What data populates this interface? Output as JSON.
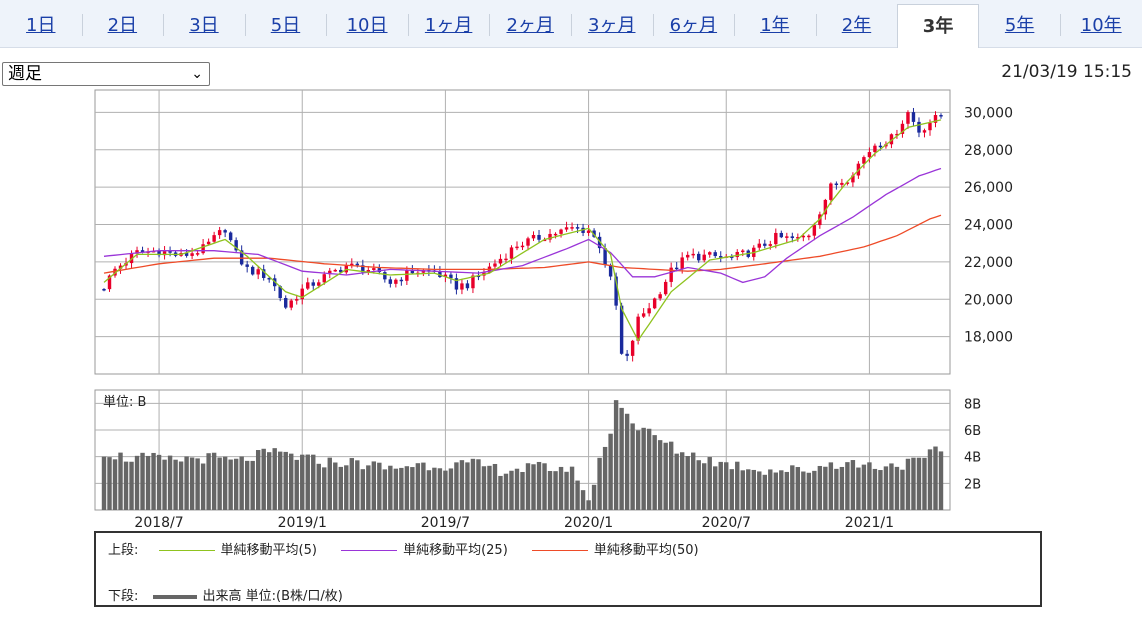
{
  "tabs": [
    {
      "label": "1日",
      "active": false
    },
    {
      "label": "2日",
      "active": false
    },
    {
      "label": "3日",
      "active": false
    },
    {
      "label": "5日",
      "active": false
    },
    {
      "label": "10日",
      "active": false
    },
    {
      "label": "1ヶ月",
      "active": false
    },
    {
      "label": "2ヶ月",
      "active": false
    },
    {
      "label": "3ヶ月",
      "active": false
    },
    {
      "label": "6ヶ月",
      "active": false
    },
    {
      "label": "1年",
      "active": false
    },
    {
      "label": "2年",
      "active": false
    },
    {
      "label": "3年",
      "active": true
    },
    {
      "label": "5年",
      "active": false
    },
    {
      "label": "10年",
      "active": false
    }
  ],
  "period_select": {
    "value": "週足"
  },
  "timestamp": "21/03/19 15:15",
  "colors": {
    "up": "#e8002a",
    "down": "#1a2a9c",
    "ma5": "#8fc31f",
    "ma25": "#9a35d8",
    "ma50": "#ee4b28",
    "volume": "#666666",
    "grid": "#b0b0b0"
  },
  "chart_data": [
    {
      "type": "candlestick",
      "y_ticks": [
        "30,000",
        "28,000",
        "26,000",
        "24,000",
        "22,000",
        "20,000",
        "18,000"
      ],
      "y_tick_values": [
        30000,
        28000,
        26000,
        24000,
        22000,
        20000,
        18000
      ],
      "ylim": [
        16000,
        31200
      ],
      "x_ticks": [
        "2018/7",
        "2019/1",
        "2019/7",
        "2020/1",
        "2020/7",
        "2021/1"
      ],
      "x_tick_index": [
        10,
        36,
        62,
        88,
        113,
        139
      ],
      "weeks": 153,
      "close_anchors": [
        [
          0,
          20700
        ],
        [
          2,
          21600
        ],
        [
          6,
          22500
        ],
        [
          10,
          22600
        ],
        [
          14,
          22300
        ],
        [
          18,
          22700
        ],
        [
          22,
          23800
        ],
        [
          24,
          22400
        ],
        [
          26,
          21600
        ],
        [
          30,
          21200
        ],
        [
          33,
          19600
        ],
        [
          36,
          20500
        ],
        [
          40,
          21200
        ],
        [
          44,
          21800
        ],
        [
          48,
          21600
        ],
        [
          52,
          20900
        ],
        [
          56,
          21500
        ],
        [
          60,
          21500
        ],
        [
          64,
          20700
        ],
        [
          66,
          20800
        ],
        [
          70,
          21700
        ],
        [
          75,
          22900
        ],
        [
          80,
          23400
        ],
        [
          85,
          23800
        ],
        [
          88,
          23700
        ],
        [
          90,
          22900
        ],
        [
          92,
          21000
        ],
        [
          93,
          19600
        ],
        [
          94,
          17000
        ],
        [
          95,
          16800
        ],
        [
          97,
          18900
        ],
        [
          100,
          20000
        ],
        [
          103,
          21500
        ],
        [
          106,
          22300
        ],
        [
          110,
          22300
        ],
        [
          114,
          22200
        ],
        [
          118,
          22600
        ],
        [
          122,
          23300
        ],
        [
          126,
          23200
        ],
        [
          128,
          23500
        ],
        [
          132,
          26000
        ],
        [
          135,
          26500
        ],
        [
          138,
          27600
        ],
        [
          140,
          28300
        ],
        [
          143,
          28600
        ],
        [
          146,
          30000
        ],
        [
          148,
          29000
        ],
        [
          150,
          29500
        ],
        [
          152,
          29800
        ]
      ],
      "ma5_anchors": [
        [
          0,
          20900
        ],
        [
          6,
          22400
        ],
        [
          14,
          22400
        ],
        [
          22,
          23200
        ],
        [
          26,
          22300
        ],
        [
          33,
          20400
        ],
        [
          36,
          20100
        ],
        [
          44,
          21600
        ],
        [
          52,
          21300
        ],
        [
          60,
          21400
        ],
        [
          64,
          21000
        ],
        [
          70,
          21400
        ],
        [
          80,
          23200
        ],
        [
          88,
          23800
        ],
        [
          92,
          22400
        ],
        [
          94,
          19500
        ],
        [
          97,
          17800
        ],
        [
          103,
          20400
        ],
        [
          110,
          22100
        ],
        [
          118,
          22500
        ],
        [
          126,
          23200
        ],
        [
          130,
          24300
        ],
        [
          132,
          25200
        ],
        [
          135,
          26300
        ],
        [
          140,
          27800
        ],
        [
          146,
          29200
        ],
        [
          152,
          29600
        ]
      ],
      "ma25_anchors": [
        [
          0,
          22300
        ],
        [
          10,
          22600
        ],
        [
          20,
          22600
        ],
        [
          28,
          22400
        ],
        [
          36,
          21500
        ],
        [
          44,
          21300
        ],
        [
          52,
          21600
        ],
        [
          60,
          21500
        ],
        [
          68,
          21400
        ],
        [
          76,
          21800
        ],
        [
          84,
          22700
        ],
        [
          88,
          23200
        ],
        [
          92,
          22500
        ],
        [
          96,
          21200
        ],
        [
          100,
          21200
        ],
        [
          106,
          21700
        ],
        [
          112,
          21400
        ],
        [
          116,
          20900
        ],
        [
          120,
          21200
        ],
        [
          124,
          22200
        ],
        [
          130,
          23400
        ],
        [
          136,
          24400
        ],
        [
          142,
          25600
        ],
        [
          148,
          26600
        ],
        [
          152,
          27000
        ]
      ],
      "ma50_anchors": [
        [
          0,
          21400
        ],
        [
          10,
          21900
        ],
        [
          20,
          22200
        ],
        [
          30,
          22200
        ],
        [
          40,
          21900
        ],
        [
          50,
          21700
        ],
        [
          60,
          21600
        ],
        [
          70,
          21600
        ],
        [
          80,
          21700
        ],
        [
          88,
          22000
        ],
        [
          94,
          21700
        ],
        [
          100,
          21600
        ],
        [
          106,
          21500
        ],
        [
          112,
          21600
        ],
        [
          120,
          21900
        ],
        [
          130,
          22300
        ],
        [
          138,
          22800
        ],
        [
          144,
          23400
        ],
        [
          150,
          24300
        ],
        [
          152,
          24500
        ]
      ]
    },
    {
      "type": "bar",
      "unit_label": "単位: B",
      "y_ticks": [
        "8B",
        "6B",
        "4B",
        "2B"
      ],
      "y_tick_values": [
        8,
        6,
        4,
        2
      ],
      "ylim": [
        0,
        9
      ],
      "volume_anchors": [
        [
          0,
          4.4
        ],
        [
          4,
          3.9
        ],
        [
          8,
          3.9
        ],
        [
          12,
          3.7
        ],
        [
          16,
          3.9
        ],
        [
          20,
          3.9
        ],
        [
          24,
          3.6
        ],
        [
          28,
          4.1
        ],
        [
          32,
          4.3
        ],
        [
          36,
          3.9
        ],
        [
          40,
          3.6
        ],
        [
          44,
          3.6
        ],
        [
          48,
          3.4
        ],
        [
          52,
          3.1
        ],
        [
          56,
          3.4
        ],
        [
          60,
          3.4
        ],
        [
          64,
          3.4
        ],
        [
          68,
          3.4
        ],
        [
          72,
          3.0
        ],
        [
          76,
          3.1
        ],
        [
          80,
          3.2
        ],
        [
          84,
          3.1
        ],
        [
          86,
          2.6
        ],
        [
          88,
          0.4
        ],
        [
          90,
          4.0
        ],
        [
          92,
          5.5
        ],
        [
          93,
          8.5
        ],
        [
          94,
          8.0
        ],
        [
          96,
          6.5
        ],
        [
          98,
          6.0
        ],
        [
          100,
          5.5
        ],
        [
          104,
          4.5
        ],
        [
          108,
          4.0
        ],
        [
          112,
          3.5
        ],
        [
          116,
          3.3
        ],
        [
          120,
          3.0
        ],
        [
          124,
          3.0
        ],
        [
          128,
          3.0
        ],
        [
          132,
          3.5
        ],
        [
          136,
          3.5
        ],
        [
          140,
          3.3
        ],
        [
          144,
          3.4
        ],
        [
          148,
          3.6
        ],
        [
          152,
          4.6
        ]
      ]
    }
  ],
  "legend": {
    "upper_label": "上段:",
    "items": [
      {
        "label": "単純移動平均(5)",
        "color": "#8fc31f"
      },
      {
        "label": "単純移動平均(25)",
        "color": "#9a35d8"
      },
      {
        "label": "単純移動平均(50)",
        "color": "#ee4b28"
      }
    ],
    "lower_label": "下段:",
    "lower_item": "出来高 単位:(B株/口/枚)"
  }
}
